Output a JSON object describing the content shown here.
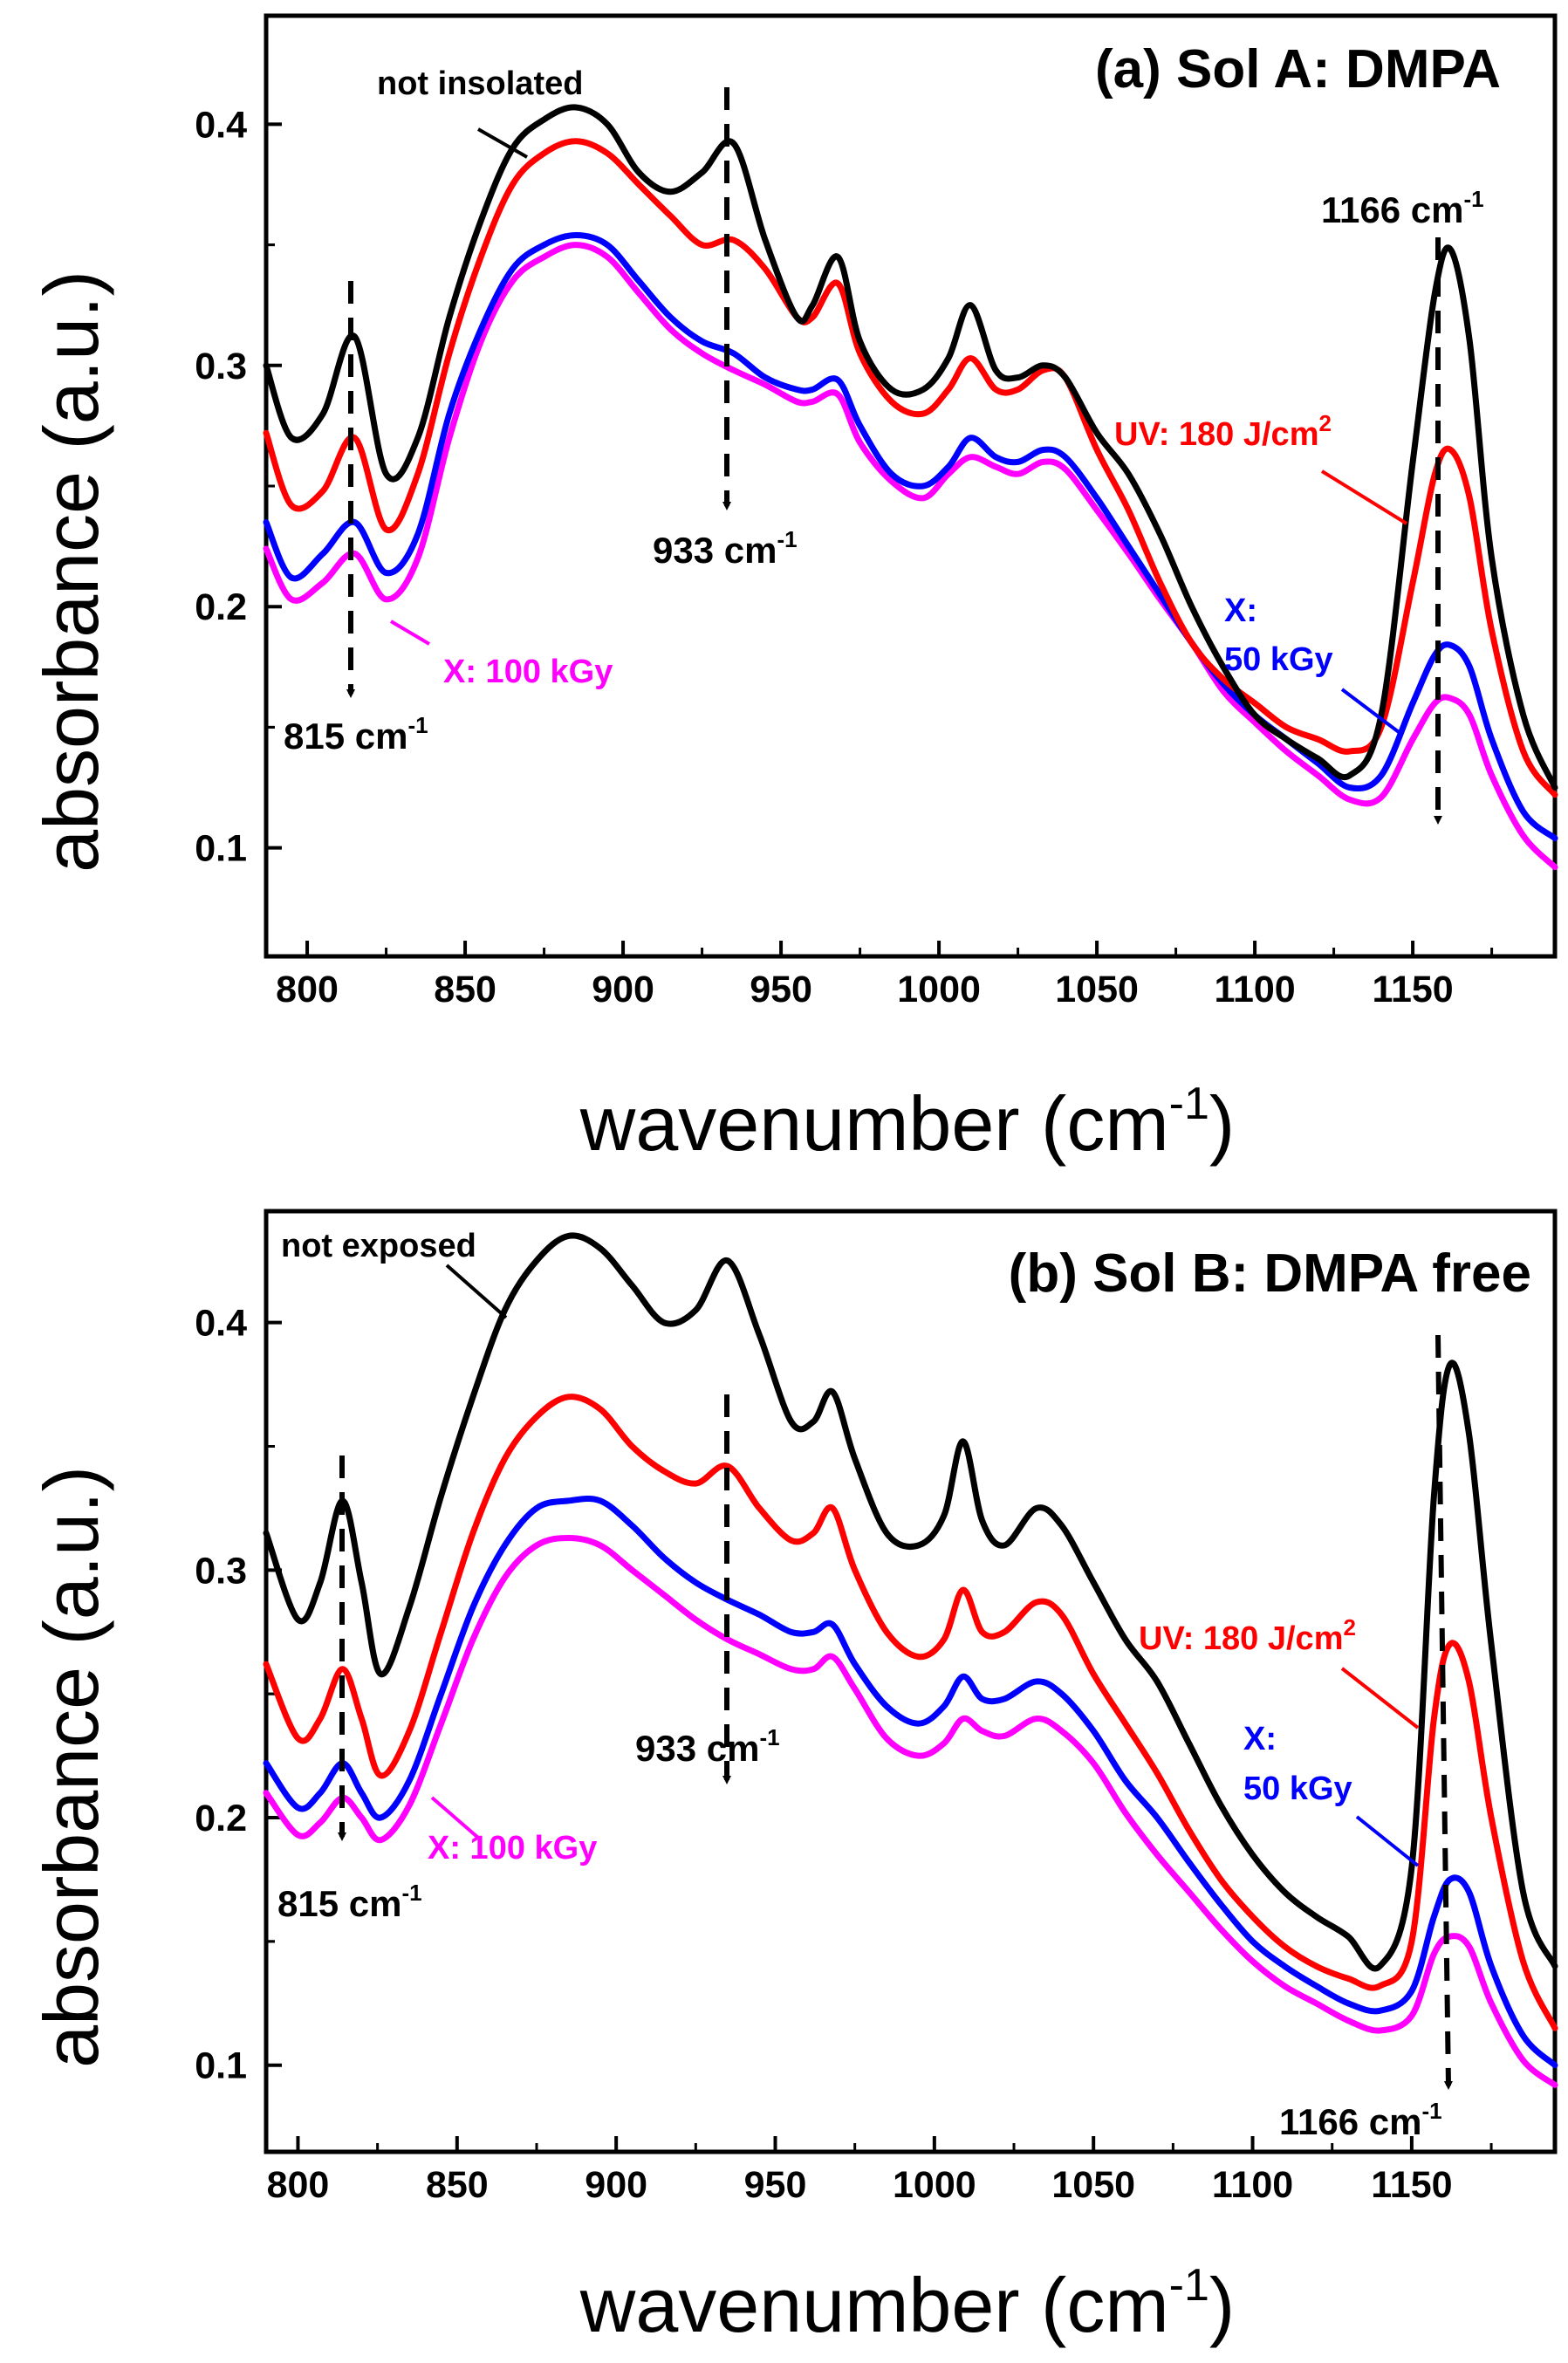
{
  "chart_data": [
    {
      "type": "line",
      "title": "(a) Sol A: DMPA",
      "xlabel": "wavenumber (cm",
      "xlabel_sup": "-1",
      "xlabel_close": ")",
      "ylabel": "absorbance (a.u.)",
      "xlim": [
        787,
        1195
      ],
      "ylim": [
        0.055,
        0.445
      ],
      "xticks": [
        "800",
        "850",
        "900",
        "950",
        "1000",
        "1050",
        "1100",
        "1150"
      ],
      "yticks": [
        "0.1",
        "0.2",
        "0.3",
        "0.4"
      ],
      "x": [
        787,
        795,
        805,
        815,
        825,
        835,
        845,
        855,
        865,
        875,
        885,
        895,
        905,
        915,
        925,
        935,
        945,
        955,
        960,
        968,
        975,
        985,
        995,
        1003,
        1010,
        1018,
        1025,
        1033,
        1040,
        1050,
        1060,
        1070,
        1080,
        1090,
        1100,
        1110,
        1120,
        1130,
        1140,
        1150,
        1157,
        1162,
        1168,
        1175,
        1185,
        1195
      ],
      "series": [
        {
          "name": "not insolated",
          "color": "#000000",
          "values": [
            0.3,
            0.27,
            0.28,
            0.312,
            0.255,
            0.27,
            0.32,
            0.36,
            0.39,
            0.402,
            0.407,
            0.4,
            0.38,
            0.372,
            0.38,
            0.392,
            0.352,
            0.32,
            0.325,
            0.345,
            0.31,
            0.29,
            0.29,
            0.303,
            0.325,
            0.298,
            0.295,
            0.3,
            0.295,
            0.272,
            0.255,
            0.23,
            0.2,
            0.175,
            0.155,
            0.145,
            0.137,
            0.13,
            0.155,
            0.26,
            0.33,
            0.348,
            0.31,
            0.22,
            0.155,
            0.125
          ]
        },
        {
          "name": "UV: 180 J/cm2",
          "color": "#ff0000",
          "values": [
            0.272,
            0.242,
            0.248,
            0.27,
            0.232,
            0.255,
            0.305,
            0.345,
            0.375,
            0.388,
            0.393,
            0.388,
            0.375,
            0.362,
            0.35,
            0.352,
            0.34,
            0.32,
            0.32,
            0.334,
            0.305,
            0.285,
            0.28,
            0.29,
            0.303,
            0.29,
            0.29,
            0.298,
            0.295,
            0.265,
            0.24,
            0.21,
            0.185,
            0.17,
            0.16,
            0.15,
            0.145,
            0.14,
            0.15,
            0.21,
            0.255,
            0.265,
            0.245,
            0.19,
            0.14,
            0.122
          ]
        },
        {
          "name": "X: 50 kGy",
          "color": "#0000ff",
          "values": [
            0.235,
            0.212,
            0.222,
            0.235,
            0.214,
            0.23,
            0.28,
            0.315,
            0.34,
            0.35,
            0.354,
            0.35,
            0.335,
            0.32,
            0.31,
            0.305,
            0.295,
            0.29,
            0.29,
            0.294,
            0.275,
            0.255,
            0.25,
            0.258,
            0.27,
            0.262,
            0.26,
            0.265,
            0.262,
            0.245,
            0.225,
            0.205,
            0.185,
            0.168,
            0.155,
            0.145,
            0.135,
            0.125,
            0.13,
            0.16,
            0.18,
            0.184,
            0.175,
            0.145,
            0.115,
            0.104
          ]
        },
        {
          "name": "X: 100 kGy",
          "color": "#ff00ff",
          "values": [
            0.224,
            0.203,
            0.21,
            0.222,
            0.203,
            0.22,
            0.27,
            0.31,
            0.335,
            0.345,
            0.35,
            0.345,
            0.33,
            0.315,
            0.305,
            0.298,
            0.292,
            0.285,
            0.285,
            0.288,
            0.268,
            0.252,
            0.245,
            0.255,
            0.262,
            0.258,
            0.255,
            0.26,
            0.257,
            0.24,
            0.222,
            0.203,
            0.185,
            0.165,
            0.152,
            0.14,
            0.13,
            0.12,
            0.121,
            0.145,
            0.16,
            0.162,
            0.155,
            0.13,
            0.105,
            0.092
          ]
        }
      ],
      "annotations": {
        "label_not_insolated": "not insolated",
        "label_uv": "UV: 180 J/cm",
        "label_uv_sup": "2",
        "label_x": "X:",
        "label_x_dose": "50 kGy",
        "label_x100": "X: 100 kGy",
        "peak_815": "815 cm",
        "peak_933": "933 cm",
        "peak_1166": "1166 cm",
        "peak_sup": "-1"
      }
    },
    {
      "type": "line",
      "title": "(b) Sol B: DMPA free",
      "xlabel": "wavenumber (cm",
      "xlabel_sup": "-1",
      "xlabel_close": ")",
      "ylabel": "absorbance (a.u.)",
      "xlim": [
        790,
        1195
      ],
      "ylim": [
        0.065,
        0.445
      ],
      "xticks": [
        "800",
        "850",
        "900",
        "950",
        "1000",
        "1050",
        "1100",
        "1150"
      ],
      "yticks": [
        "0.1",
        "0.2",
        "0.3",
        "0.4"
      ],
      "x": [
        790,
        800,
        807,
        814,
        820,
        826,
        835,
        845,
        855,
        865,
        875,
        885,
        895,
        905,
        915,
        925,
        935,
        945,
        955,
        962,
        968,
        975,
        985,
        995,
        1003,
        1009,
        1015,
        1022,
        1032,
        1040,
        1050,
        1060,
        1070,
        1080,
        1090,
        1100,
        1110,
        1120,
        1130,
        1140,
        1150,
        1157,
        1162,
        1168,
        1175,
        1185,
        1195
      ],
      "series": [
        {
          "name": "not exposed",
          "color": "#000000",
          "values": [
            0.315,
            0.28,
            0.295,
            0.328,
            0.295,
            0.258,
            0.285,
            0.33,
            0.37,
            0.405,
            0.425,
            0.435,
            0.43,
            0.415,
            0.4,
            0.405,
            0.425,
            0.395,
            0.36,
            0.36,
            0.372,
            0.345,
            0.315,
            0.31,
            0.322,
            0.352,
            0.32,
            0.31,
            0.325,
            0.318,
            0.295,
            0.272,
            0.255,
            0.23,
            0.205,
            0.185,
            0.17,
            0.16,
            0.152,
            0.14,
            0.18,
            0.33,
            0.383,
            0.355,
            0.27,
            0.17,
            0.14
          ]
        },
        {
          "name": "UV: 180 J/cm2",
          "color": "#ff0000",
          "values": [
            0.262,
            0.232,
            0.24,
            0.26,
            0.24,
            0.217,
            0.235,
            0.275,
            0.315,
            0.345,
            0.362,
            0.37,
            0.365,
            0.35,
            0.34,
            0.335,
            0.342,
            0.325,
            0.312,
            0.315,
            0.325,
            0.3,
            0.275,
            0.265,
            0.272,
            0.292,
            0.275,
            0.275,
            0.287,
            0.282,
            0.258,
            0.238,
            0.218,
            0.195,
            0.175,
            0.16,
            0.148,
            0.14,
            0.135,
            0.132,
            0.15,
            0.24,
            0.27,
            0.255,
            0.2,
            0.142,
            0.115
          ]
        },
        {
          "name": "X: 50 kGy",
          "color": "#0000ff",
          "values": [
            0.222,
            0.204,
            0.21,
            0.222,
            0.21,
            0.2,
            0.215,
            0.25,
            0.285,
            0.31,
            0.325,
            0.328,
            0.328,
            0.318,
            0.305,
            0.295,
            0.288,
            0.282,
            0.275,
            0.275,
            0.278,
            0.262,
            0.245,
            0.238,
            0.245,
            0.257,
            0.248,
            0.248,
            0.255,
            0.25,
            0.235,
            0.215,
            0.2,
            0.182,
            0.165,
            0.15,
            0.14,
            0.132,
            0.125,
            0.122,
            0.13,
            0.16,
            0.175,
            0.17,
            0.14,
            0.112,
            0.1
          ]
        },
        {
          "name": "X: 100 kGy",
          "color": "#ff00ff",
          "values": [
            0.21,
            0.193,
            0.198,
            0.208,
            0.2,
            0.191,
            0.205,
            0.238,
            0.272,
            0.297,
            0.31,
            0.313,
            0.31,
            0.3,
            0.29,
            0.28,
            0.272,
            0.266,
            0.26,
            0.26,
            0.265,
            0.252,
            0.232,
            0.225,
            0.23,
            0.24,
            0.235,
            0.233,
            0.24,
            0.235,
            0.222,
            0.202,
            0.185,
            0.17,
            0.155,
            0.142,
            0.132,
            0.125,
            0.118,
            0.114,
            0.12,
            0.145,
            0.152,
            0.148,
            0.125,
            0.102,
            0.092
          ]
        }
      ],
      "annotations": {
        "label_not_exposed": "not exposed",
        "label_uv": "UV: 180 J/cm",
        "label_uv_sup": "2",
        "label_x": "X:",
        "label_x_dose": "50 kGy",
        "label_x100": "X: 100 kGy",
        "peak_815": "815 cm",
        "peak_933": "933 cm",
        "peak_1166": "1166 cm",
        "peak_sup": "-1"
      }
    }
  ]
}
